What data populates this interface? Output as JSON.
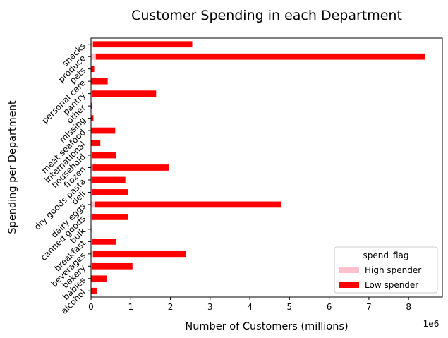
{
  "chart_data": {
    "type": "bar",
    "orientation": "horizontal",
    "stacked": true,
    "title": "Customer Spending in each Department",
    "xlabel": "Number of Customers (millions)",
    "ylabel": "Spending per Department",
    "x_offset_label": "1e6",
    "xlim": [
      0,
      8.85
    ],
    "xticks": [
      "0",
      "1",
      "2",
      "3",
      "4",
      "5",
      "6",
      "7",
      "8"
    ],
    "categories": [
      "alcohol",
      "babies",
      "bakery",
      "beverages",
      "breakfast",
      "bulk",
      "canned goods",
      "dairy eggs",
      "deli",
      "dry goods pasta",
      "frozen",
      "household",
      "international",
      "meat seafood",
      "missing",
      "other",
      "pantry",
      "personal care",
      "pets",
      "produce",
      "snacks"
    ],
    "series": [
      {
        "name": "High spender",
        "color": "#ffc0cb",
        "values": [
          0.003,
          0.008,
          0.025,
          0.05,
          0.03,
          0.001,
          0.02,
          0.1,
          0.02,
          0.015,
          0.04,
          0.02,
          0.005,
          0.01,
          0.001,
          0.001,
          0.03,
          0.01,
          0.001,
          0.12,
          0.05
        ]
      },
      {
        "name": "Low spender",
        "color": "#ff0000",
        "values": [
          0.14,
          0.39,
          1.02,
          2.34,
          0.6,
          0.01,
          0.92,
          4.7,
          0.92,
          0.85,
          1.93,
          0.62,
          0.23,
          0.6,
          0.06,
          0.03,
          1.61,
          0.41,
          0.08,
          8.3,
          2.5
        ]
      }
    ],
    "legend": {
      "title": "spend_flag",
      "position": "lower-right"
    },
    "grid": false
  }
}
